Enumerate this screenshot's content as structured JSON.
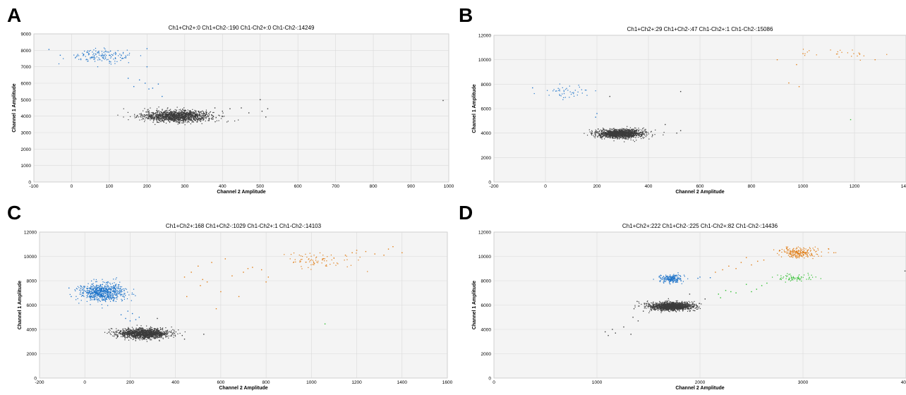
{
  "colors": {
    "negative": "#3c3c3c",
    "ch1_positive": "#1f74c9",
    "ch2_positive": "#2dbf2d",
    "double_positive": "#e07b12"
  },
  "chart_data": [
    {
      "panel_label": "A",
      "type": "scatter",
      "title": "Ch1+Ch2+:0  Ch1+Ch2-:190  Ch1-Ch2+:0  Ch1-Ch2-:14249",
      "xlabel": "Channel 2 Amplitude",
      "ylabel": "Channel 1 Amplitude",
      "xlim": [
        -100,
        1000
      ],
      "ylim": [
        0,
        9000
      ],
      "xticks": [
        -100,
        0,
        100,
        200,
        300,
        400,
        500,
        600,
        700,
        800,
        900,
        1000
      ],
      "yticks": [
        0,
        1000,
        2000,
        3000,
        4000,
        5000,
        6000,
        7000,
        8000,
        9000
      ],
      "grid": true,
      "clusters": [
        {
          "population": "Ch1-Ch2-",
          "color": "#3c3c3c",
          "center": [
            280,
            4000
          ],
          "spread": [
            45,
            170
          ],
          "count": 1400
        },
        {
          "population": "Ch1+Ch2-",
          "color": "#1f74c9",
          "center": [
            85,
            7650
          ],
          "spread": [
            40,
            200
          ],
          "count": 150
        }
      ],
      "points": [
        {
          "population": "Ch1+Ch2-",
          "x": 150,
          "y": 6300
        },
        {
          "population": "Ch1+Ch2-",
          "x": 165,
          "y": 5800
        },
        {
          "population": "Ch1+Ch2-",
          "x": 180,
          "y": 6200
        },
        {
          "population": "Ch1+Ch2-",
          "x": 195,
          "y": 6000
        },
        {
          "population": "Ch1+Ch2-",
          "x": 200,
          "y": 7000
        },
        {
          "population": "Ch1+Ch2-",
          "x": 205,
          "y": 5650
        },
        {
          "population": "Ch1+Ch2-",
          "x": 215,
          "y": 5700
        },
        {
          "population": "Ch1+Ch2-",
          "x": 230,
          "y": 5950
        },
        {
          "population": "Ch1+Ch2-",
          "x": 240,
          "y": 5200
        },
        {
          "population": "Ch1+Ch2-",
          "x": 200,
          "y": 8100
        },
        {
          "population": "Ch1+Ch2-",
          "x": -60,
          "y": 8050
        },
        {
          "population": "Ch1+Ch2-",
          "x": -30,
          "y": 7700
        },
        {
          "population": "Ch1-Ch2-",
          "x": 400,
          "y": 4300
        },
        {
          "population": "Ch1-Ch2-",
          "x": 420,
          "y": 4450
        },
        {
          "population": "Ch1-Ch2-",
          "x": 450,
          "y": 4500
        },
        {
          "population": "Ch1-Ch2-",
          "x": 470,
          "y": 4200
        },
        {
          "population": "Ch1-Ch2-",
          "x": 500,
          "y": 5000
        },
        {
          "population": "Ch1-Ch2-",
          "x": 505,
          "y": 4300
        },
        {
          "population": "Ch1-Ch2-",
          "x": 520,
          "y": 4450
        },
        {
          "population": "Ch1-Ch2-",
          "x": 515,
          "y": 3950
        },
        {
          "population": "Ch1-Ch2-",
          "x": 985,
          "y": 4950
        },
        {
          "population": "Ch1-Ch2-",
          "x": 380,
          "y": 4500
        }
      ]
    },
    {
      "panel_label": "B",
      "type": "scatter",
      "title": "Ch1+Ch2+:29  Ch1+Ch2-:47  Ch1-Ch2+:1  Ch1-Ch2-:15086",
      "xlabel": "Channel 2 Amplitude",
      "ylabel": "Channel 1 Amplitude",
      "xlim": [
        -200,
        1400
      ],
      "ylim": [
        0,
        12000
      ],
      "xticks": [
        -200,
        0,
        200,
        400,
        600,
        800,
        1000,
        1200,
        1400
      ],
      "yticks": [
        0,
        2000,
        4000,
        6000,
        8000,
        10000,
        12000
      ],
      "grid": true,
      "clusters": [
        {
          "population": "Ch1-Ch2-",
          "color": "#3c3c3c",
          "center": [
            290,
            3950
          ],
          "spread": [
            45,
            180
          ],
          "count": 1400
        },
        {
          "population": "Ch1+Ch2-",
          "color": "#1f74c9",
          "center": [
            90,
            7400
          ],
          "spread": [
            50,
            300
          ],
          "count": 45
        },
        {
          "population": "Ch1+Ch2+",
          "color": "#e07b12",
          "center": [
            1140,
            10400
          ],
          "spread": [
            70,
            250
          ],
          "count": 24
        }
      ],
      "points": [
        {
          "population": "Ch1+Ch2+",
          "x": 900,
          "y": 10000
        },
        {
          "population": "Ch1+Ch2+",
          "x": 945,
          "y": 8100
        },
        {
          "population": "Ch1+Ch2+",
          "x": 985,
          "y": 7800
        },
        {
          "population": "Ch1+Ch2+",
          "x": 975,
          "y": 9600
        },
        {
          "population": "Ch1+Ch2+",
          "x": 1000,
          "y": 10500
        },
        {
          "population": "Ch1+Ch2+",
          "x": 1280,
          "y": 10000
        },
        {
          "population": "Ch1-Ch2+",
          "x": 1185,
          "y": 5100
        },
        {
          "population": "Ch1-Ch2-",
          "x": 465,
          "y": 4700
        },
        {
          "population": "Ch1-Ch2-",
          "x": 510,
          "y": 4000
        },
        {
          "population": "Ch1-Ch2-",
          "x": 525,
          "y": 4200
        },
        {
          "population": "Ch1-Ch2-",
          "x": 525,
          "y": 7400
        },
        {
          "population": "Ch1-Ch2-",
          "x": 250,
          "y": 7000
        },
        {
          "population": "Ch1+Ch2-",
          "x": 200,
          "y": 5600
        },
        {
          "population": "Ch1+Ch2-",
          "x": 195,
          "y": 5300
        },
        {
          "population": "Ch1+Ch2-",
          "x": -50,
          "y": 7700
        }
      ]
    },
    {
      "panel_label": "C",
      "type": "scatter",
      "title": "Ch1+Ch2+:168  Ch1+Ch2-:1029  Ch1-Ch2+:1  Ch1-Ch2-:14103",
      "xlabel": "Channel 2 Amplitude",
      "ylabel": "Channel 1 Amplitude",
      "xlim": [
        -200,
        1600
      ],
      "ylim": [
        0,
        12000
      ],
      "xticks": [
        -200,
        0,
        200,
        400,
        600,
        800,
        1000,
        1200,
        1400,
        1600
      ],
      "yticks": [
        0,
        2000,
        4000,
        6000,
        8000,
        10000,
        12000
      ],
      "grid": true,
      "clusters": [
        {
          "population": "Ch1-Ch2-",
          "color": "#3c3c3c",
          "center": [
            260,
            3650
          ],
          "spread": [
            55,
            200
          ],
          "count": 1400
        },
        {
          "population": "Ch1+Ch2-",
          "color": "#1f74c9",
          "center": [
            75,
            7050
          ],
          "spread": [
            50,
            380
          ],
          "count": 700
        },
        {
          "population": "Ch1+Ch2+",
          "color": "#e07b12",
          "center": [
            1020,
            9700
          ],
          "spread": [
            90,
            300
          ],
          "count": 80
        }
      ],
      "points": [
        {
          "population": "Ch1+Ch2-",
          "x": 160,
          "y": 5200
        },
        {
          "population": "Ch1+Ch2-",
          "x": 180,
          "y": 4900
        },
        {
          "population": "Ch1+Ch2-",
          "x": 190,
          "y": 5500
        },
        {
          "population": "Ch1+Ch2-",
          "x": 200,
          "y": 4700
        },
        {
          "population": "Ch1+Ch2-",
          "x": 210,
          "y": 5300
        },
        {
          "population": "Ch1+Ch2-",
          "x": 225,
          "y": 4800
        },
        {
          "population": "Ch1+Ch2-",
          "x": 240,
          "y": 5000
        },
        {
          "population": "Ch1+Ch2-",
          "x": -70,
          "y": 7400
        },
        {
          "population": "Ch1+Ch2-",
          "x": -60,
          "y": 6700
        },
        {
          "population": "Ch1+Ch2+",
          "x": 440,
          "y": 8300
        },
        {
          "population": "Ch1+Ch2+",
          "x": 450,
          "y": 6700
        },
        {
          "population": "Ch1+Ch2+",
          "x": 470,
          "y": 8700
        },
        {
          "population": "Ch1+Ch2+",
          "x": 500,
          "y": 9200
        },
        {
          "population": "Ch1+Ch2+",
          "x": 510,
          "y": 7600
        },
        {
          "population": "Ch1+Ch2+",
          "x": 520,
          "y": 8100
        },
        {
          "population": "Ch1+Ch2+",
          "x": 540,
          "y": 7900
        },
        {
          "population": "Ch1+Ch2+",
          "x": 560,
          "y": 9500
        },
        {
          "population": "Ch1+Ch2+",
          "x": 580,
          "y": 5700
        },
        {
          "population": "Ch1+Ch2+",
          "x": 600,
          "y": 7100
        },
        {
          "population": "Ch1+Ch2+",
          "x": 620,
          "y": 9800
        },
        {
          "population": "Ch1+Ch2+",
          "x": 650,
          "y": 8400
        },
        {
          "population": "Ch1+Ch2+",
          "x": 680,
          "y": 6700
        },
        {
          "population": "Ch1+Ch2+",
          "x": 700,
          "y": 8700
        },
        {
          "population": "Ch1+Ch2+",
          "x": 720,
          "y": 9000
        },
        {
          "population": "Ch1+Ch2+",
          "x": 740,
          "y": 9100
        },
        {
          "population": "Ch1+Ch2+",
          "x": 780,
          "y": 8900
        },
        {
          "population": "Ch1+Ch2+",
          "x": 800,
          "y": 7900
        },
        {
          "population": "Ch1+Ch2+",
          "x": 810,
          "y": 8300
        },
        {
          "population": "Ch1+Ch2+",
          "x": 1150,
          "y": 10100
        },
        {
          "population": "Ch1+Ch2+",
          "x": 1180,
          "y": 10300
        },
        {
          "population": "Ch1+Ch2+",
          "x": 1200,
          "y": 10500
        },
        {
          "population": "Ch1+Ch2+",
          "x": 1240,
          "y": 10400
        },
        {
          "population": "Ch1+Ch2+",
          "x": 1280,
          "y": 10200
        },
        {
          "population": "Ch1+Ch2+",
          "x": 1320,
          "y": 10100
        },
        {
          "population": "Ch1+Ch2+",
          "x": 1340,
          "y": 10600
        },
        {
          "population": "Ch1+Ch2+",
          "x": 1360,
          "y": 10800
        },
        {
          "population": "Ch1+Ch2+",
          "x": 1400,
          "y": 10300
        },
        {
          "population": "Ch1-Ch2+",
          "x": 1060,
          "y": 4450
        },
        {
          "population": "Ch1-Ch2-",
          "x": 430,
          "y": 3500
        },
        {
          "population": "Ch1-Ch2-",
          "x": 440,
          "y": 3200
        },
        {
          "population": "Ch1-Ch2-",
          "x": 525,
          "y": 3600
        },
        {
          "population": "Ch1-Ch2-",
          "x": 320,
          "y": 4900
        }
      ]
    },
    {
      "panel_label": "D",
      "type": "scatter",
      "title": "Ch1+Ch2+:222  Ch1+Ch2-:225  Ch1-Ch2+:82  Ch1-Ch2-:14436",
      "xlabel": "Channel 2 Amplitude",
      "ylabel": "Channel 1 Amplitude",
      "xlim": [
        0,
        4000
      ],
      "ylim": [
        0,
        12000
      ],
      "xticks": [
        0,
        1000,
        2000,
        3000,
        4000
      ],
      "yticks": [
        0,
        2000,
        4000,
        6000,
        8000,
        10000,
        12000
      ],
      "grid": true,
      "clusters": [
        {
          "population": "Ch1-Ch2-",
          "color": "#3c3c3c",
          "center": [
            1720,
            5900
          ],
          "spread": [
            110,
            170
          ],
          "count": 1400
        },
        {
          "population": "Ch1+Ch2-",
          "color": "#1f74c9",
          "center": [
            1720,
            8150
          ],
          "spread": [
            55,
            180
          ],
          "count": 200
        },
        {
          "population": "Ch1+Ch2+",
          "color": "#e07b12",
          "center": [
            2970,
            10300
          ],
          "spread": [
            90,
            230
          ],
          "count": 200
        },
        {
          "population": "Ch1-Ch2+",
          "color": "#2dbf2d",
          "center": [
            2930,
            8250
          ],
          "spread": [
            90,
            150
          ],
          "count": 65
        }
      ],
      "points": [
        {
          "population": "Ch1-Ch2-",
          "x": 1080,
          "y": 3800
        },
        {
          "population": "Ch1-Ch2-",
          "x": 1110,
          "y": 3500
        },
        {
          "population": "Ch1-Ch2-",
          "x": 1150,
          "y": 4000
        },
        {
          "population": "Ch1-Ch2-",
          "x": 1180,
          "y": 3700
        },
        {
          "population": "Ch1-Ch2-",
          "x": 1260,
          "y": 4200
        },
        {
          "population": "Ch1-Ch2-",
          "x": 1350,
          "y": 5000
        },
        {
          "population": "Ch1-Ch2-",
          "x": 1400,
          "y": 4700
        },
        {
          "population": "Ch1-Ch2-",
          "x": 1450,
          "y": 5500
        },
        {
          "population": "Ch1-Ch2-",
          "x": 1390,
          "y": 6300
        },
        {
          "population": "Ch1-Ch2-",
          "x": 1360,
          "y": 5700
        },
        {
          "population": "Ch1-Ch2-",
          "x": 1330,
          "y": 3600
        },
        {
          "population": "Ch1-Ch2-",
          "x": 1900,
          "y": 6900
        },
        {
          "population": "Ch1-Ch2-",
          "x": 2050,
          "y": 6500
        },
        {
          "population": "Ch1+Ch2-",
          "x": 1980,
          "y": 8200
        },
        {
          "population": "Ch1+Ch2-",
          "x": 2000,
          "y": 8300
        },
        {
          "population": "Ch1+Ch2-",
          "x": 2100,
          "y": 8250
        },
        {
          "population": "Ch1-Ch2+",
          "x": 2180,
          "y": 6900
        },
        {
          "population": "Ch1-Ch2+",
          "x": 2200,
          "y": 6600
        },
        {
          "population": "Ch1-Ch2+",
          "x": 2250,
          "y": 7200
        },
        {
          "population": "Ch1-Ch2+",
          "x": 2300,
          "y": 7100
        },
        {
          "population": "Ch1-Ch2+",
          "x": 2350,
          "y": 7000
        },
        {
          "population": "Ch1-Ch2+",
          "x": 2450,
          "y": 7700
        },
        {
          "population": "Ch1-Ch2+",
          "x": 2500,
          "y": 7100
        },
        {
          "population": "Ch1-Ch2+",
          "x": 2550,
          "y": 7300
        },
        {
          "population": "Ch1-Ch2+",
          "x": 2600,
          "y": 7600
        },
        {
          "population": "Ch1-Ch2+",
          "x": 2650,
          "y": 7800
        },
        {
          "population": "Ch1+Ch2+",
          "x": 2150,
          "y": 8700
        },
        {
          "population": "Ch1+Ch2+",
          "x": 2220,
          "y": 8900
        },
        {
          "population": "Ch1+Ch2+",
          "x": 2280,
          "y": 9200
        },
        {
          "population": "Ch1+Ch2+",
          "x": 2350,
          "y": 9000
        },
        {
          "population": "Ch1+Ch2+",
          "x": 2400,
          "y": 9500
        },
        {
          "population": "Ch1+Ch2+",
          "x": 2450,
          "y": 9900
        },
        {
          "population": "Ch1+Ch2+",
          "x": 2500,
          "y": 9300
        },
        {
          "population": "Ch1+Ch2+",
          "x": 2560,
          "y": 9600
        },
        {
          "population": "Ch1+Ch2+",
          "x": 2620,
          "y": 9700
        },
        {
          "population": "Ch1+Ch2+",
          "x": 3250,
          "y": 10600
        },
        {
          "population": "Ch1+Ch2+",
          "x": 3300,
          "y": 10300
        },
        {
          "population": "Ch1-Ch2-",
          "x": 3990,
          "y": 8800
        }
      ]
    }
  ]
}
